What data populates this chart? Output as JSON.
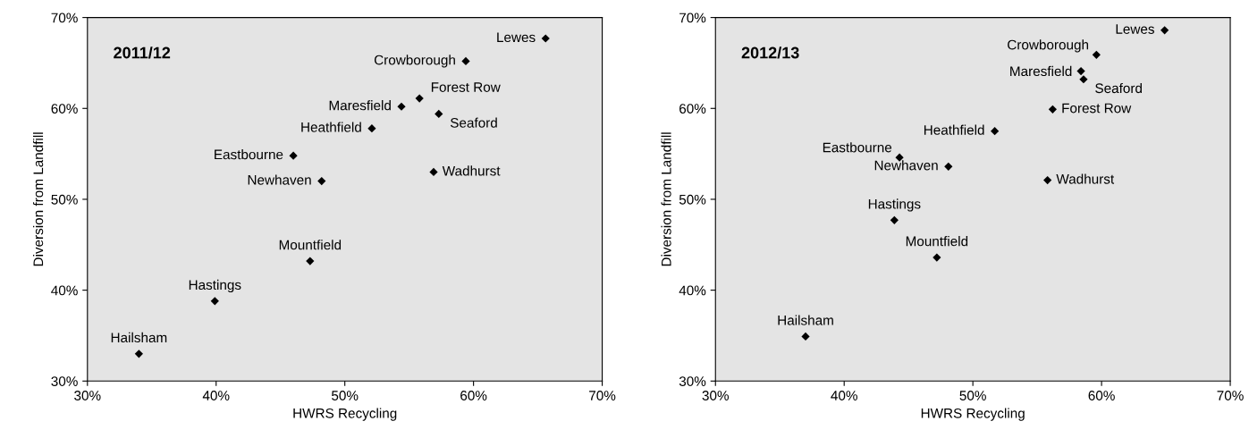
{
  "chart_data": [
    {
      "type": "scatter",
      "title": "2011/12",
      "xlabel": "HWRS Recycling",
      "ylabel": "Diversion from Landfill",
      "marker": "diamond",
      "grid": false,
      "legend": false,
      "xlim": [
        30,
        70
      ],
      "ylim": [
        30,
        70
      ],
      "xticks": [
        {
          "value": 30,
          "label": "30%"
        },
        {
          "value": 40,
          "label": "40%"
        },
        {
          "value": 50,
          "label": "50%"
        },
        {
          "value": 60,
          "label": "60%"
        },
        {
          "value": 70,
          "label": "70%"
        }
      ],
      "yticks": [
        {
          "value": 30,
          "label": "30%"
        },
        {
          "value": 40,
          "label": "40%"
        },
        {
          "value": 50,
          "label": "50%"
        },
        {
          "value": 60,
          "label": "60%"
        },
        {
          "value": 70,
          "label": "70%"
        }
      ],
      "series": [
        {
          "color": "#000000",
          "x": [
            65.6,
            59.4,
            55.8,
            54.4,
            57.3,
            52.1,
            46.0,
            48.2,
            56.9,
            47.3,
            39.9,
            34.0
          ],
          "values": [
            67.7,
            65.2,
            61.1,
            60.2,
            59.4,
            57.8,
            54.8,
            52.0,
            53.0,
            43.2,
            38.8,
            33.0
          ]
        }
      ],
      "annotations": [
        {
          "text": "Lewes",
          "x": 65.6,
          "y": 67.7
        },
        {
          "text": "Crowborough",
          "x": 59.4,
          "y": 65.2
        },
        {
          "text": "Forest Row",
          "x": 55.8,
          "y": 61.1
        },
        {
          "text": "Maresfield",
          "x": 54.4,
          "y": 60.2
        },
        {
          "text": "Seaford",
          "x": 57.3,
          "y": 59.4
        },
        {
          "text": "Heathfield",
          "x": 52.1,
          "y": 57.8
        },
        {
          "text": "Eastbourne",
          "x": 46.0,
          "y": 54.8
        },
        {
          "text": "Newhaven",
          "x": 48.2,
          "y": 52.0
        },
        {
          "text": "Wadhurst",
          "x": 56.9,
          "y": 53.0
        },
        {
          "text": "Mountfield",
          "x": 47.3,
          "y": 43.2
        },
        {
          "text": "Hastings",
          "x": 39.9,
          "y": 38.8
        },
        {
          "text": "Hailsham",
          "x": 34.0,
          "y": 33.0
        }
      ]
    },
    {
      "type": "scatter",
      "title": "2012/13",
      "xlabel": "HWRS Recycling",
      "ylabel": "Diversion from Landfill",
      "marker": "diamond",
      "grid": false,
      "legend": false,
      "xlim": [
        30,
        70
      ],
      "ylim": [
        30,
        70
      ],
      "xticks": [
        {
          "value": 30,
          "label": "30%"
        },
        {
          "value": 40,
          "label": "40%"
        },
        {
          "value": 50,
          "label": "50%"
        },
        {
          "value": 60,
          "label": "60%"
        },
        {
          "value": 70,
          "label": "70%"
        }
      ],
      "yticks": [
        {
          "value": 30,
          "label": "30%"
        },
        {
          "value": 40,
          "label": "40%"
        },
        {
          "value": 50,
          "label": "50%"
        },
        {
          "value": 60,
          "label": "60%"
        },
        {
          "value": 70,
          "label": "70%"
        }
      ],
      "series": [
        {
          "color": "#000000",
          "x": [
            64.9,
            59.6,
            58.4,
            58.6,
            56.2,
            51.7,
            44.3,
            48.1,
            55.8,
            43.9,
            47.2,
            37.0
          ],
          "values": [
            68.6,
            65.9,
            64.1,
            63.2,
            59.9,
            57.5,
            54.6,
            53.6,
            52.1,
            47.7,
            43.6,
            34.9
          ]
        }
      ],
      "annotations": [
        {
          "text": "Lewes",
          "x": 64.9,
          "y": 68.6
        },
        {
          "text": "Crowborough",
          "x": 59.6,
          "y": 65.9
        },
        {
          "text": "Maresfield",
          "x": 58.4,
          "y": 64.1
        },
        {
          "text": "Seaford",
          "x": 58.6,
          "y": 63.2
        },
        {
          "text": "Forest Row",
          "x": 56.2,
          "y": 59.9
        },
        {
          "text": "Heathfield",
          "x": 51.7,
          "y": 57.5
        },
        {
          "text": "Eastbourne",
          "x": 44.3,
          "y": 54.6
        },
        {
          "text": "Newhaven",
          "x": 48.1,
          "y": 53.6
        },
        {
          "text": "Wadhurst",
          "x": 55.8,
          "y": 52.1
        },
        {
          "text": "Hastings",
          "x": 43.9,
          "y": 47.7
        },
        {
          "text": "Mountfield",
          "x": 47.2,
          "y": 43.6
        },
        {
          "text": "Hailsham",
          "x": 37.0,
          "y": 34.9
        }
      ]
    }
  ]
}
